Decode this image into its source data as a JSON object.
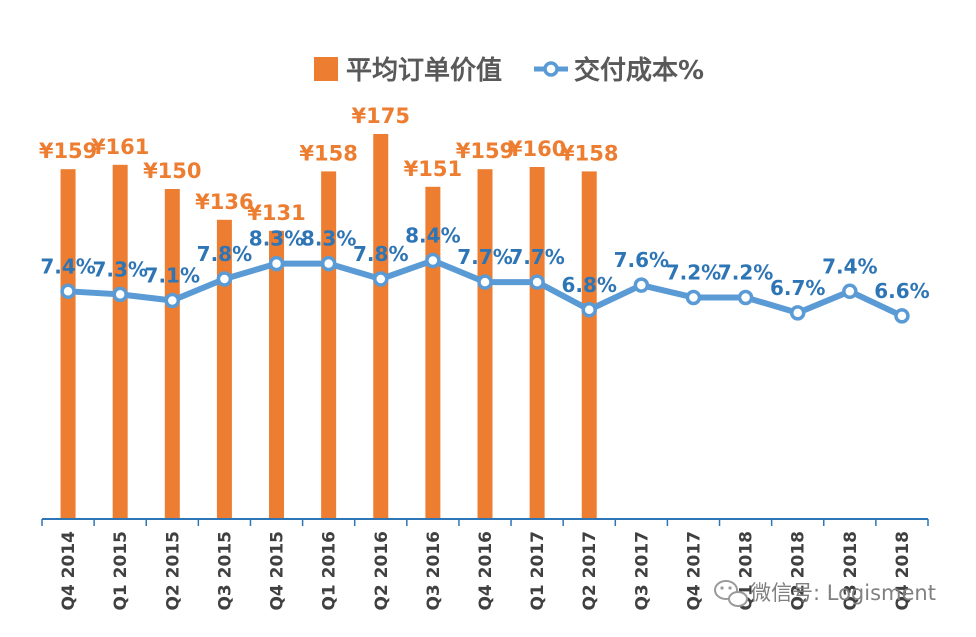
{
  "chart_data": {
    "type": "bar+line",
    "categories": [
      "Q4 2014",
      "Q1 2015",
      "Q2 2015",
      "Q3 2015",
      "Q4 2015",
      "Q1 2016",
      "Q2 2016",
      "Q3 2016",
      "Q4 2016",
      "Q1 2017",
      "Q2 2017",
      "Q3 2017",
      "Q4 2017",
      "Q1 2018",
      "Q2 2018",
      "Q3 2018",
      "Q4 2018"
    ],
    "series": [
      {
        "name": "平均订单价值",
        "kind": "bar",
        "color": "#ed7d31",
        "values": [
          159,
          161,
          150,
          136,
          131,
          158,
          175,
          151,
          159,
          160,
          158,
          null,
          null,
          null,
          null,
          null,
          null
        ],
        "labels": [
          "¥159",
          "¥161",
          "¥150",
          "¥136",
          "¥131",
          "¥158",
          "¥175",
          "¥151",
          "¥159",
          "¥160",
          "¥158",
          "",
          "",
          "",
          "",
          "",
          ""
        ]
      },
      {
        "name": "交付成本%",
        "kind": "line",
        "color": "#5b9bd5",
        "values": [
          7.4,
          7.3,
          7.1,
          7.8,
          8.3,
          8.3,
          7.8,
          8.4,
          7.7,
          7.7,
          6.8,
          7.6,
          7.2,
          7.2,
          6.7,
          7.4,
          6.6
        ],
        "labels": [
          "7.4%",
          "7.3%",
          "7.1%",
          "7.8%",
          "8.3%",
          "8.3%",
          "7.8%",
          "8.4%",
          "7.7%",
          "7.7%",
          "6.8%",
          "7.6%",
          "7.2%",
          "7.2%",
          "6.7%",
          "7.4%",
          "6.6%"
        ]
      }
    ],
    "bar_ylim": [
      0,
      200
    ],
    "line_ylim": [
      0,
      13
    ],
    "legend_position": "top",
    "grid": false,
    "title": "",
    "xlabel": "",
    "ylabel": ""
  },
  "watermark": {
    "icon": "wechat-icon",
    "text": "微信号: Logisment"
  }
}
